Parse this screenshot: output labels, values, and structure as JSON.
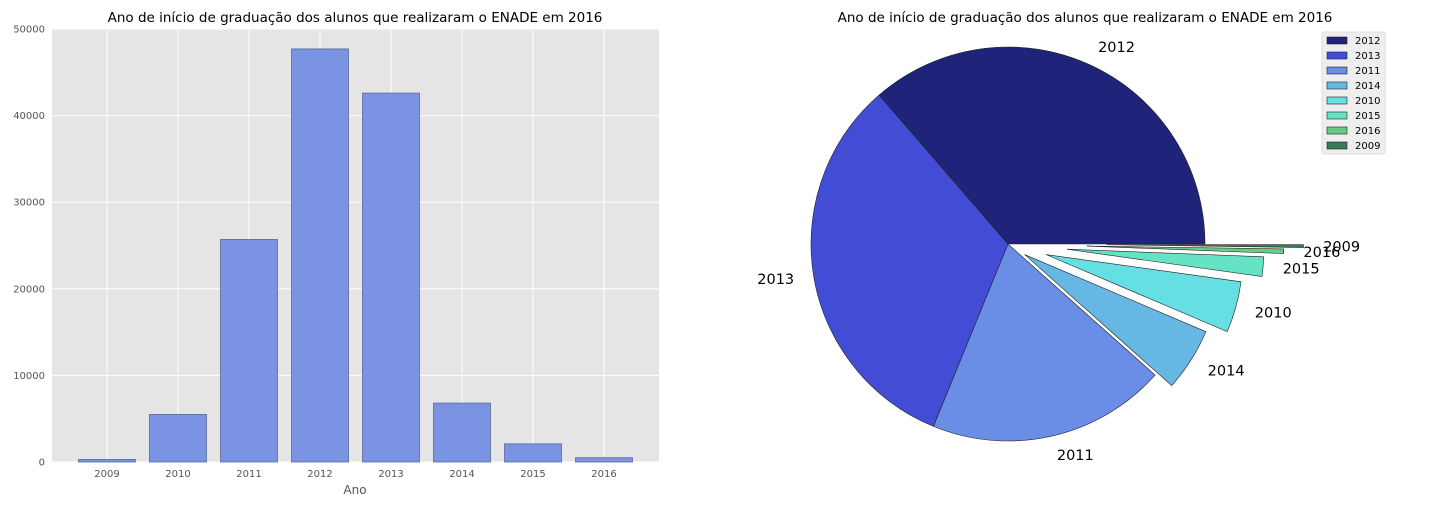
{
  "chart_data": [
    {
      "type": "bar",
      "title": "Ano de início de graduação dos alunos que realizaram o ENADE em 2016",
      "xlabel": "Ano",
      "ylabel": "",
      "categories": [
        "2009",
        "2010",
        "2011",
        "2012",
        "2013",
        "2014",
        "2015",
        "2016"
      ],
      "values": [
        300,
        5500,
        25700,
        47700,
        42600,
        6800,
        2100,
        500
      ],
      "ylim": [
        0,
        50000
      ],
      "yticks": [
        "0",
        "10000",
        "20000",
        "30000",
        "40000",
        "50000"
      ],
      "grid": true,
      "bar_color": "#7b93e3",
      "background": "#e5e5e5"
    },
    {
      "type": "pie",
      "title": "Ano de início de graduação dos alunos que realizaram o ENADE em 2016",
      "labels": [
        "2012",
        "2013",
        "2011",
        "2014",
        "2010",
        "2015",
        "2016",
        "2009"
      ],
      "values": [
        47700,
        42600,
        25700,
        6800,
        5500,
        2100,
        500,
        300
      ],
      "explode": [
        0,
        0,
        0,
        0.1,
        0.2,
        0.3,
        0.4,
        0.5
      ],
      "colors": [
        "#1f237a",
        "#424cd4",
        "#6a8de6",
        "#66b7e3",
        "#66dfe3",
        "#66e3c4",
        "#66cc88",
        "#3a7a55"
      ],
      "legend": "top-right"
    }
  ]
}
